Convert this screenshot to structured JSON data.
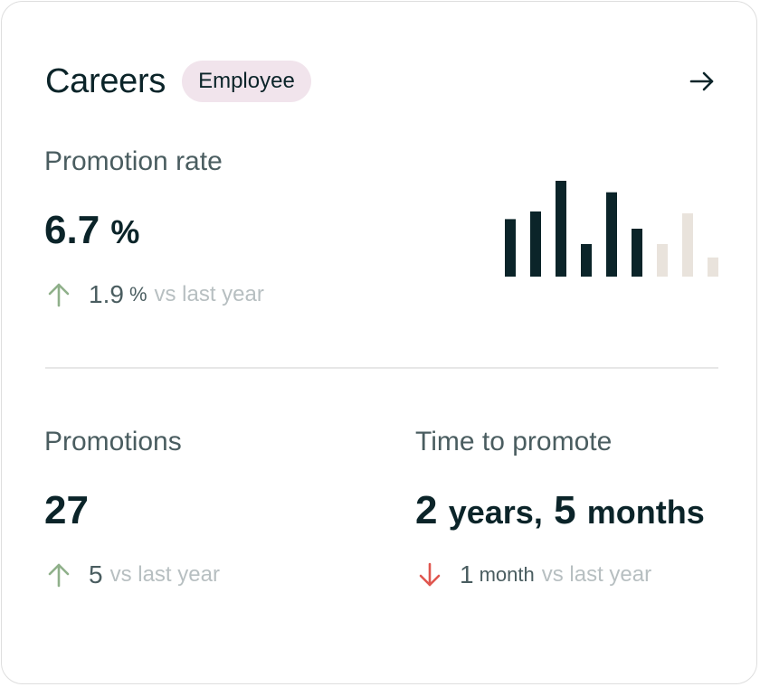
{
  "header": {
    "title": "Careers",
    "badge": "Employee"
  },
  "promotion_rate": {
    "label": "Promotion rate",
    "value": "6.7",
    "unit": "%",
    "delta_value": "1.9",
    "delta_unit": "%",
    "delta_text": "vs last year",
    "delta_direction": "up"
  },
  "promotions": {
    "label": "Promotions",
    "value": "27",
    "delta_value": "5",
    "delta_text": "vs last year",
    "delta_direction": "up"
  },
  "time_to_promote": {
    "label": "Time to promote",
    "value_years": "2",
    "years_label": "years,",
    "value_months": "5",
    "months_label": "months",
    "delta_value": "1",
    "delta_unit": "month",
    "delta_text": "vs last year",
    "delta_direction": "down"
  },
  "colors": {
    "up": "#8fb08a",
    "down": "#e0564f",
    "bar_active": "#0b2429",
    "bar_muted": "#e9e3dc"
  },
  "icons": {
    "header_link": "arrow-right-icon",
    "delta_up": "arrow-up-icon",
    "delta_down": "arrow-down-icon"
  },
  "chart_data": {
    "type": "bar",
    "values": [
      60,
      68,
      100,
      34,
      88,
      50,
      34,
      66,
      20
    ],
    "highlighted": [
      true,
      true,
      true,
      true,
      true,
      true,
      false,
      false,
      false
    ],
    "ylim": [
      0,
      100
    ]
  }
}
